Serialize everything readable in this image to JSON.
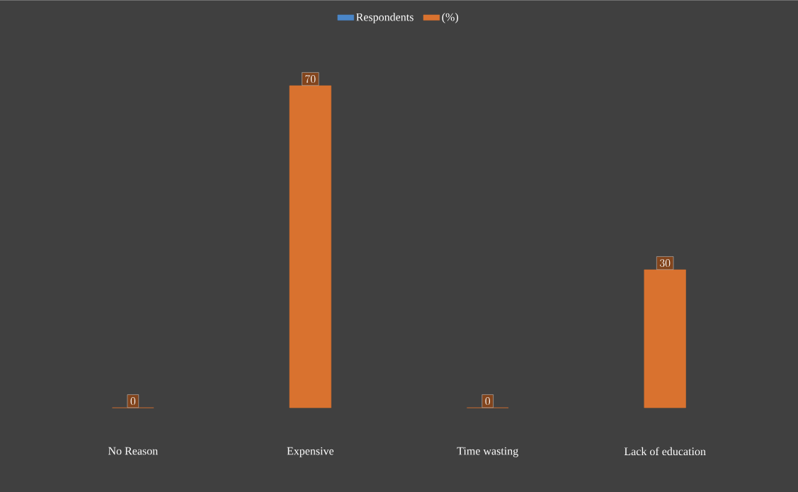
{
  "chart_data": {
    "type": "bar",
    "categories": [
      "No Reason",
      "Expensive",
      "Time wasting",
      "Lack of education"
    ],
    "series": [
      {
        "name": "Respondents",
        "color": "#4a86c8",
        "values": [
          null,
          null,
          null,
          null
        ]
      },
      {
        "name": "(%)",
        "color": "#d9722f",
        "values": [
          0,
          70,
          0,
          30
        ]
      }
    ],
    "data_labels": true,
    "legend": "top"
  }
}
